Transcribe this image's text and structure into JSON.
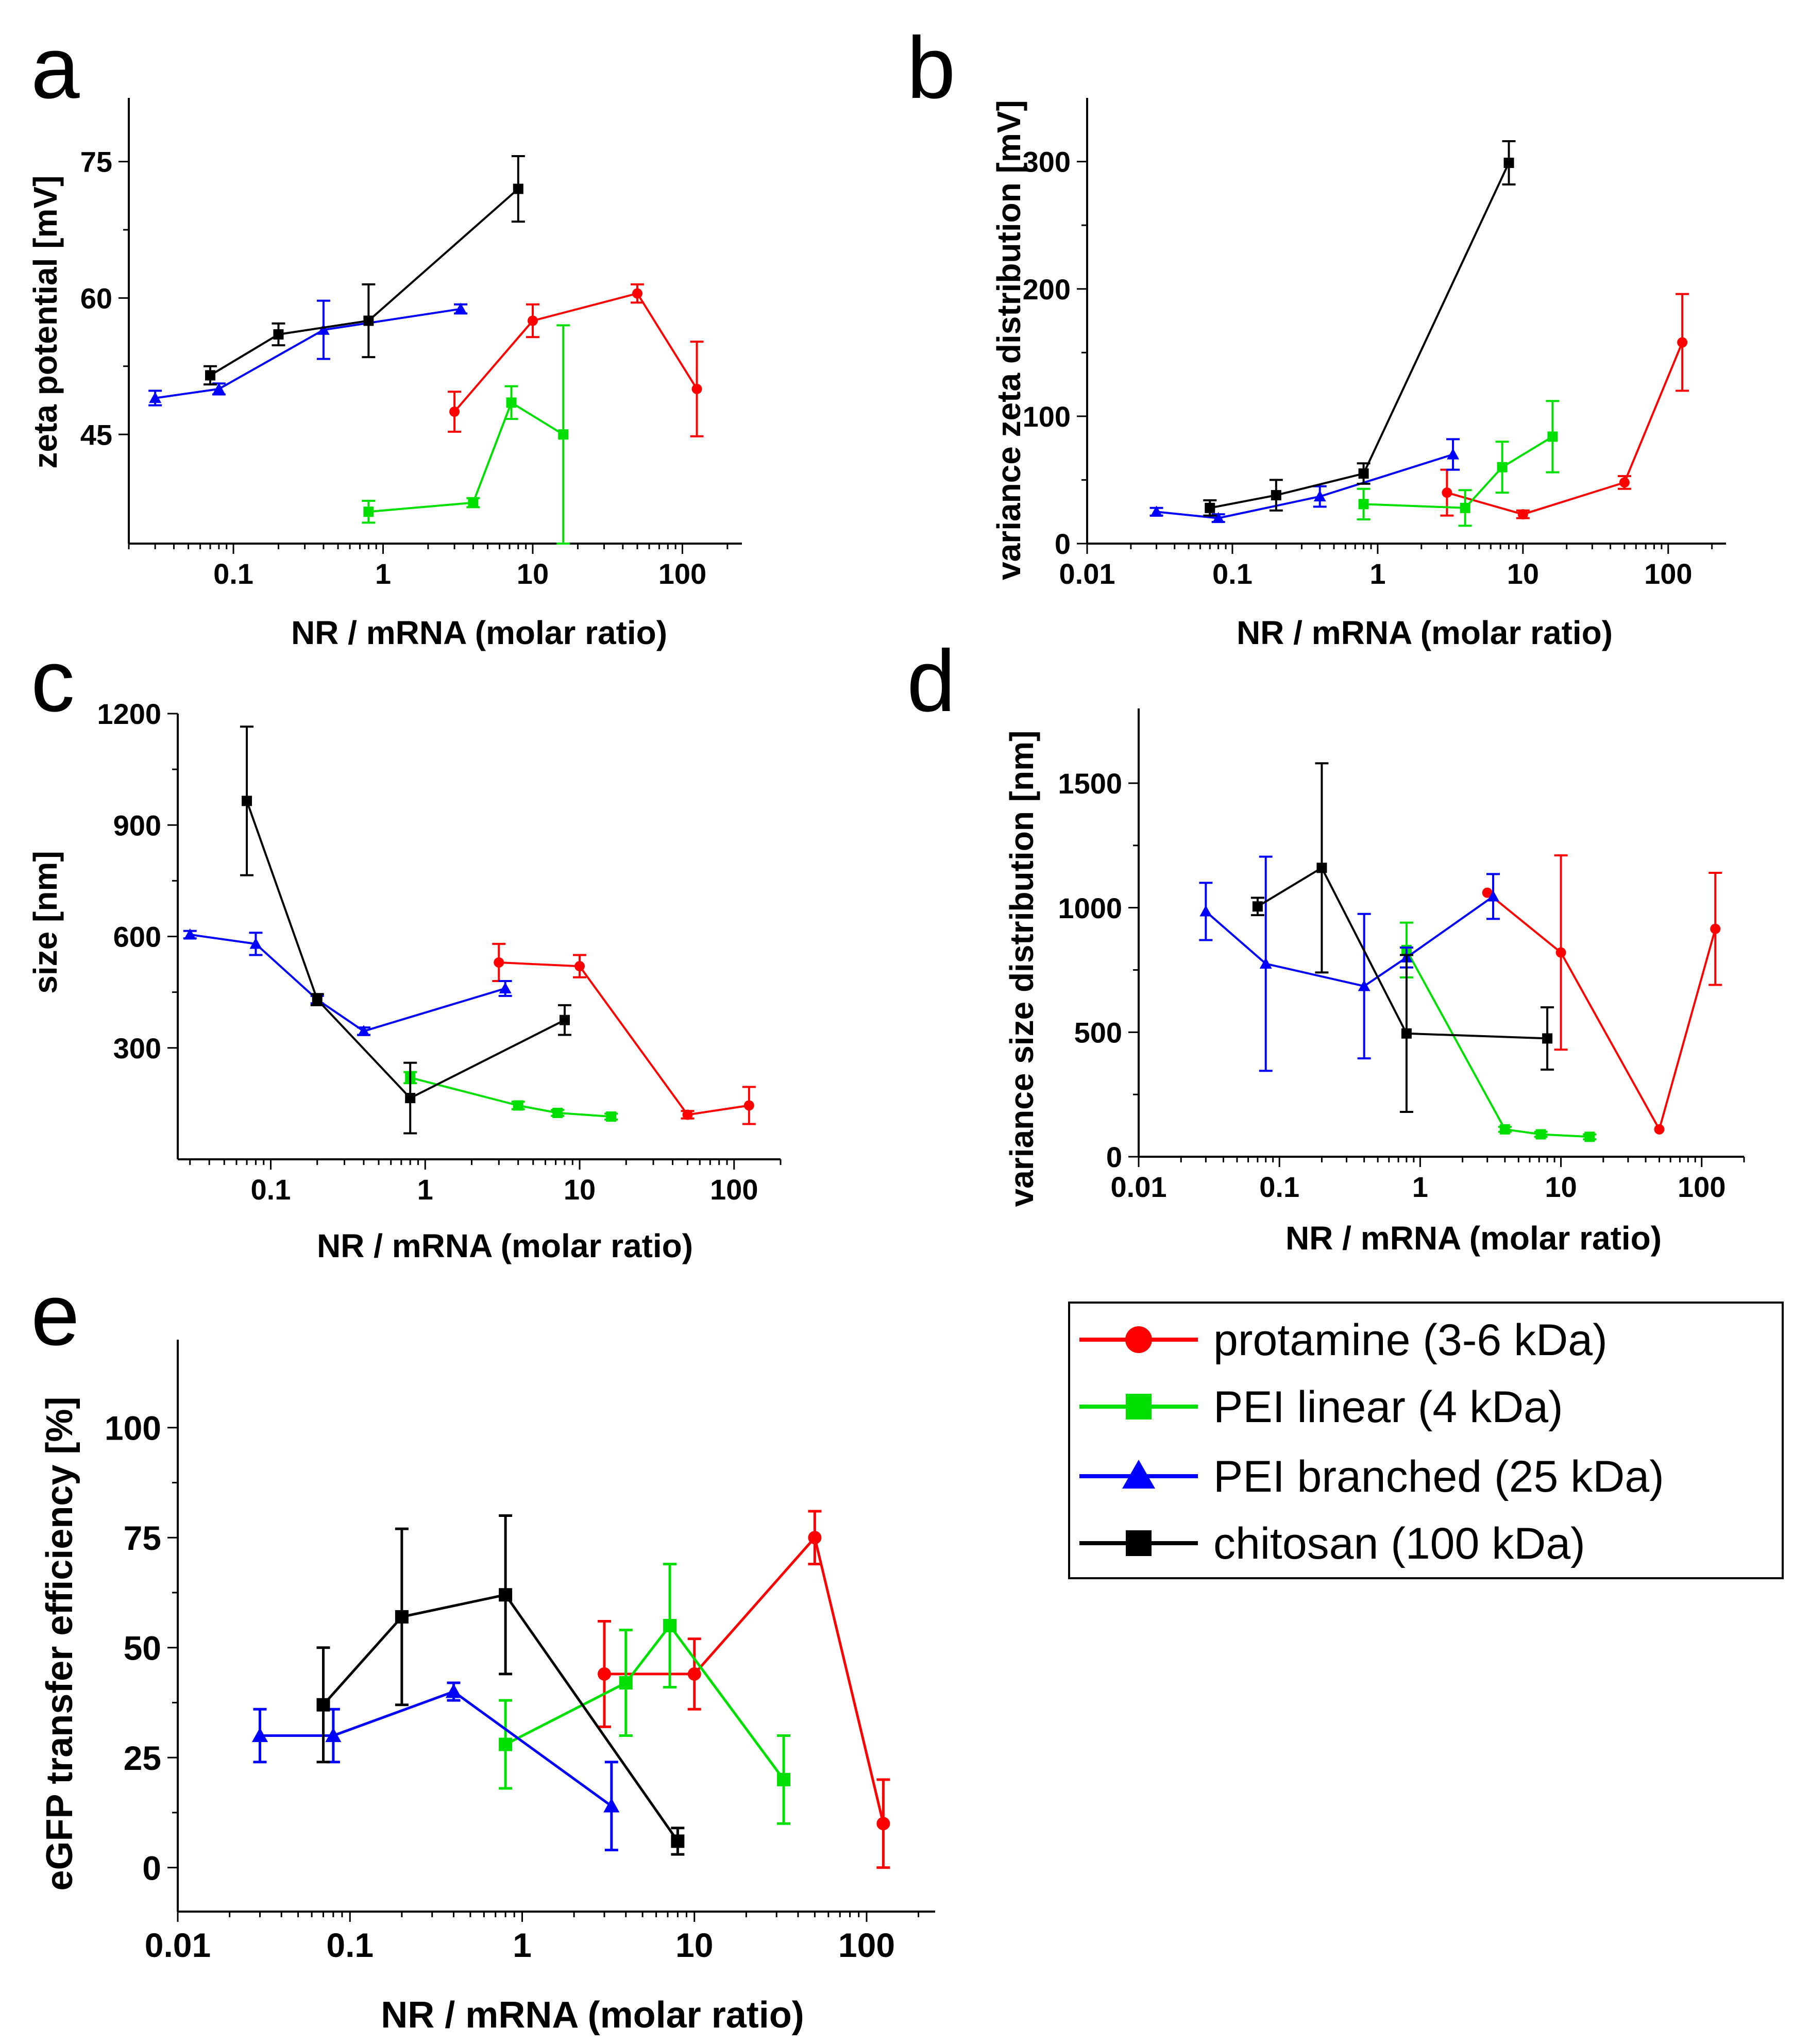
{
  "figure": {
    "legend": {
      "entries": [
        {
          "label": "protamine (3-6 kDa)",
          "color": "#ff0000",
          "marker": "circle"
        },
        {
          "label": "PEI linear (4 kDa)",
          "color": "#00e000",
          "marker": "square"
        },
        {
          "label": "PEI branched (25 kDa)",
          "color": "#0000ff",
          "marker": "triangle"
        },
        {
          "label": "chitosan (100 kDa)",
          "color": "#000000",
          "marker": "square"
        }
      ]
    }
  },
  "chart_data": [
    {
      "id": "a",
      "panel_label": "a",
      "type": "line",
      "xscale": "log",
      "xlim": [
        0.02,
        250
      ],
      "ylim": [
        33,
        82
      ],
      "xlabel": "NR / mRNA (molar ratio)",
      "ylabel": "zeta potential [mV]",
      "xticks": [
        {
          "v": 0.1,
          "label": "0.1"
        },
        {
          "v": 1,
          "label": "1"
        },
        {
          "v": 10,
          "label": "10"
        },
        {
          "v": 100,
          "label": "100"
        }
      ],
      "yticks": [
        {
          "v": 45,
          "label": "45"
        },
        {
          "v": 60,
          "label": "60"
        },
        {
          "v": 75,
          "label": "75"
        }
      ],
      "series": [
        {
          "name": "protamine (3-6 kDa)",
          "color": "#ff0000",
          "marker": "circle",
          "x": [
            3,
            10,
            50,
            125
          ],
          "y": [
            47.5,
            57.5,
            60.5,
            50
          ],
          "err": [
            2.2,
            1.8,
            1.0,
            5.2
          ]
        },
        {
          "name": "PEI linear (4 kDa)",
          "color": "#00e000",
          "marker": "square",
          "x": [
            0.8,
            4,
            7.2,
            16
          ],
          "y": [
            36.5,
            37.5,
            48.5,
            45
          ],
          "err": [
            1.2,
            0.5,
            1.8,
            12
          ]
        },
        {
          "name": "PEI branched (25 kDa)",
          "color": "#0000ff",
          "marker": "triangle",
          "x": [
            0.03,
            0.08,
            0.4,
            3.3
          ],
          "y": [
            49,
            50,
            56.5,
            58.8
          ],
          "err": [
            0.8,
            0.6,
            3.2,
            0.5
          ]
        },
        {
          "name": "chitosan (100 kDa)",
          "color": "#000000",
          "marker": "square",
          "x": [
            0.07,
            0.2,
            0.8,
            8
          ],
          "y": [
            51.5,
            56,
            57.5,
            72
          ],
          "err": [
            1.0,
            1.2,
            4.0,
            3.6
          ]
        }
      ]
    },
    {
      "id": "b",
      "panel_label": "b",
      "type": "line",
      "xscale": "log",
      "xlim": [
        0.01,
        250
      ],
      "ylim": [
        0,
        350
      ],
      "xlabel": "NR / mRNA (molar ratio)",
      "ylabel": "variance zeta distribution [mV]",
      "xticks": [
        {
          "v": 0.01,
          "label": "0.01"
        },
        {
          "v": 0.1,
          "label": "0.1"
        },
        {
          "v": 1,
          "label": "1"
        },
        {
          "v": 10,
          "label": "10"
        },
        {
          "v": 100,
          "label": "100"
        }
      ],
      "yticks": [
        {
          "v": 0,
          "label": "0"
        },
        {
          "v": 100,
          "label": "100"
        },
        {
          "v": 200,
          "label": "200"
        },
        {
          "v": 300,
          "label": "300"
        }
      ],
      "series": [
        {
          "name": "protamine (3-6 kDa)",
          "color": "#ff0000",
          "marker": "circle",
          "x": [
            3,
            10,
            50,
            125
          ],
          "y": [
            40,
            23,
            48,
            158
          ],
          "err": [
            18,
            3,
            5,
            38
          ]
        },
        {
          "name": "PEI linear (4 kDa)",
          "color": "#00e000",
          "marker": "square",
          "x": [
            0.8,
            4,
            7.2,
            16
          ],
          "y": [
            31,
            28,
            60,
            84
          ],
          "err": [
            12,
            14,
            20,
            28
          ]
        },
        {
          "name": "PEI branched (25 kDa)",
          "color": "#0000ff",
          "marker": "triangle",
          "x": [
            0.03,
            0.08,
            0.4,
            3.3
          ],
          "y": [
            25,
            20,
            37,
            70
          ],
          "err": [
            3,
            3,
            8,
            12
          ]
        },
        {
          "name": "chitosan (100 kDa)",
          "color": "#000000",
          "marker": "square",
          "x": [
            0.07,
            0.2,
            0.8,
            8
          ],
          "y": [
            28,
            38,
            55,
            299
          ],
          "err": [
            6,
            12,
            8,
            17
          ]
        }
      ]
    },
    {
      "id": "c",
      "panel_label": "c",
      "type": "line",
      "xscale": "log",
      "xlim": [
        0.025,
        200
      ],
      "ylim": [
        0,
        1200
      ],
      "xlabel": "NR / mRNA (molar ratio)",
      "ylabel": "size [nm]",
      "xticks": [
        {
          "v": 0.1,
          "label": "0.1"
        },
        {
          "v": 1,
          "label": "1"
        },
        {
          "v": 10,
          "label": "10"
        },
        {
          "v": 100,
          "label": "100"
        }
      ],
      "yticks": [
        {
          "v": 300,
          "label": "300"
        },
        {
          "v": 600,
          "label": "600"
        },
        {
          "v": 900,
          "label": "900"
        },
        {
          "v": 1200,
          "label": "1200"
        }
      ],
      "series": [
        {
          "name": "protamine (3-6 kDa)",
          "color": "#ff0000",
          "marker": "circle",
          "x": [
            3,
            10,
            50,
            125
          ],
          "y": [
            530,
            520,
            120,
            145
          ],
          "err": [
            50,
            30,
            10,
            50
          ]
        },
        {
          "name": "PEI linear (4 kDa)",
          "color": "#00e000",
          "marker": "square",
          "x": [
            0.8,
            4,
            7.2,
            16
          ],
          "y": [
            220,
            145,
            125,
            115
          ],
          "err": [
            15,
            10,
            8,
            8
          ]
        },
        {
          "name": "PEI branched (25 kDa)",
          "color": "#0000ff",
          "marker": "triangle",
          "x": [
            0.03,
            0.08,
            0.2,
            0.4,
            3.3
          ],
          "y": [
            605,
            580,
            430,
            345,
            460
          ],
          "err": [
            10,
            30,
            10,
            10,
            20
          ]
        },
        {
          "name": "chitosan (100 kDa)",
          "color": "#000000",
          "marker": "square",
          "x": [
            0.07,
            0.2,
            0.8,
            8
          ],
          "y": [
            965,
            430,
            165,
            375
          ],
          "err": [
            200,
            15,
            95,
            40
          ]
        }
      ]
    },
    {
      "id": "d",
      "panel_label": "d",
      "type": "line",
      "xscale": "log",
      "xlim": [
        0.01,
        200
      ],
      "ylim": [
        0,
        1800
      ],
      "xlabel": "NR / mRNA (molar ratio)",
      "ylabel": "variance size distribution [nm]",
      "xticks": [
        {
          "v": 0.01,
          "label": "0.01"
        },
        {
          "v": 0.1,
          "label": "0.1"
        },
        {
          "v": 1,
          "label": "1"
        },
        {
          "v": 10,
          "label": "10"
        },
        {
          "v": 100,
          "label": "100"
        }
      ],
      "yticks": [
        {
          "v": 0,
          "label": "0"
        },
        {
          "v": 500,
          "label": "500"
        },
        {
          "v": 1000,
          "label": "1000"
        },
        {
          "v": 1500,
          "label": "1500"
        }
      ],
      "series": [
        {
          "name": "protamine (3-6 kDa)",
          "color": "#ff0000",
          "marker": "circle",
          "x": [
            3,
            10,
            50,
            125
          ],
          "y": [
            1060,
            820,
            110,
            915
          ],
          "err": [
            0,
            390,
            0,
            225
          ]
        },
        {
          "name": "PEI linear (4 kDa)",
          "color": "#00e000",
          "marker": "square",
          "x": [
            0.8,
            4,
            7.2,
            16
          ],
          "y": [
            830,
            110,
            90,
            80
          ],
          "err": [
            110,
            10,
            10,
            10
          ]
        },
        {
          "name": "PEI branched (25 kDa)",
          "color": "#0000ff",
          "marker": "triangle",
          "x": [
            0.03,
            0.08,
            0.4,
            0.8,
            3.3
          ],
          "y": [
            985,
            775,
            685,
            800,
            1045
          ],
          "err": [
            115,
            430,
            290,
            40,
            90
          ]
        },
        {
          "name": "chitosan (100 kDa)",
          "color": "#000000",
          "marker": "square",
          "x": [
            0.07,
            0.2,
            0.8,
            8
          ],
          "y": [
            1005,
            1160,
            495,
            475
          ],
          "err": [
            35,
            420,
            315,
            125
          ]
        }
      ]
    },
    {
      "id": "e",
      "panel_label": "e",
      "type": "line",
      "xscale": "log",
      "xlim": [
        0.01,
        250
      ],
      "ylim": [
        -10,
        120
      ],
      "xlabel": "NR / mRNA (molar ratio)",
      "ylabel": "eGFP transfer efficiency [%]",
      "xticks": [
        {
          "v": 0.01,
          "label": "0.01"
        },
        {
          "v": 0.1,
          "label": "0.1"
        },
        {
          "v": 1,
          "label": "1"
        },
        {
          "v": 10,
          "label": "10"
        },
        {
          "v": 100,
          "label": "100"
        }
      ],
      "yticks": [
        {
          "v": 0,
          "label": "0"
        },
        {
          "v": 25,
          "label": "25"
        },
        {
          "v": 50,
          "label": "50"
        },
        {
          "v": 75,
          "label": "75"
        },
        {
          "v": 100,
          "label": "100"
        }
      ],
      "series": [
        {
          "name": "protamine (3-6 kDa)",
          "color": "#ff0000",
          "marker": "circle",
          "x": [
            3,
            10,
            50,
            125
          ],
          "y": [
            44,
            44,
            75,
            10
          ],
          "err": [
            12,
            8,
            6,
            10
          ]
        },
        {
          "name": "PEI linear (4 kDa)",
          "color": "#00e000",
          "marker": "square",
          "x": [
            0.8,
            4,
            7.2,
            33
          ],
          "y": [
            28,
            42,
            55,
            20
          ],
          "err": [
            10,
            12,
            14,
            10
          ]
        },
        {
          "name": "PEI branched (25 kDa)",
          "color": "#0000ff",
          "marker": "triangle",
          "x": [
            0.03,
            0.08,
            0.4,
            3.3
          ],
          "y": [
            30,
            30,
            40,
            14
          ],
          "err": [
            6,
            6,
            2,
            10
          ]
        },
        {
          "name": "chitosan (100 kDa)",
          "color": "#000000",
          "marker": "square",
          "x": [
            0.07,
            0.2,
            0.8,
            8
          ],
          "y": [
            37,
            57,
            62,
            6
          ],
          "err": [
            13,
            20,
            18,
            3
          ]
        }
      ]
    }
  ]
}
